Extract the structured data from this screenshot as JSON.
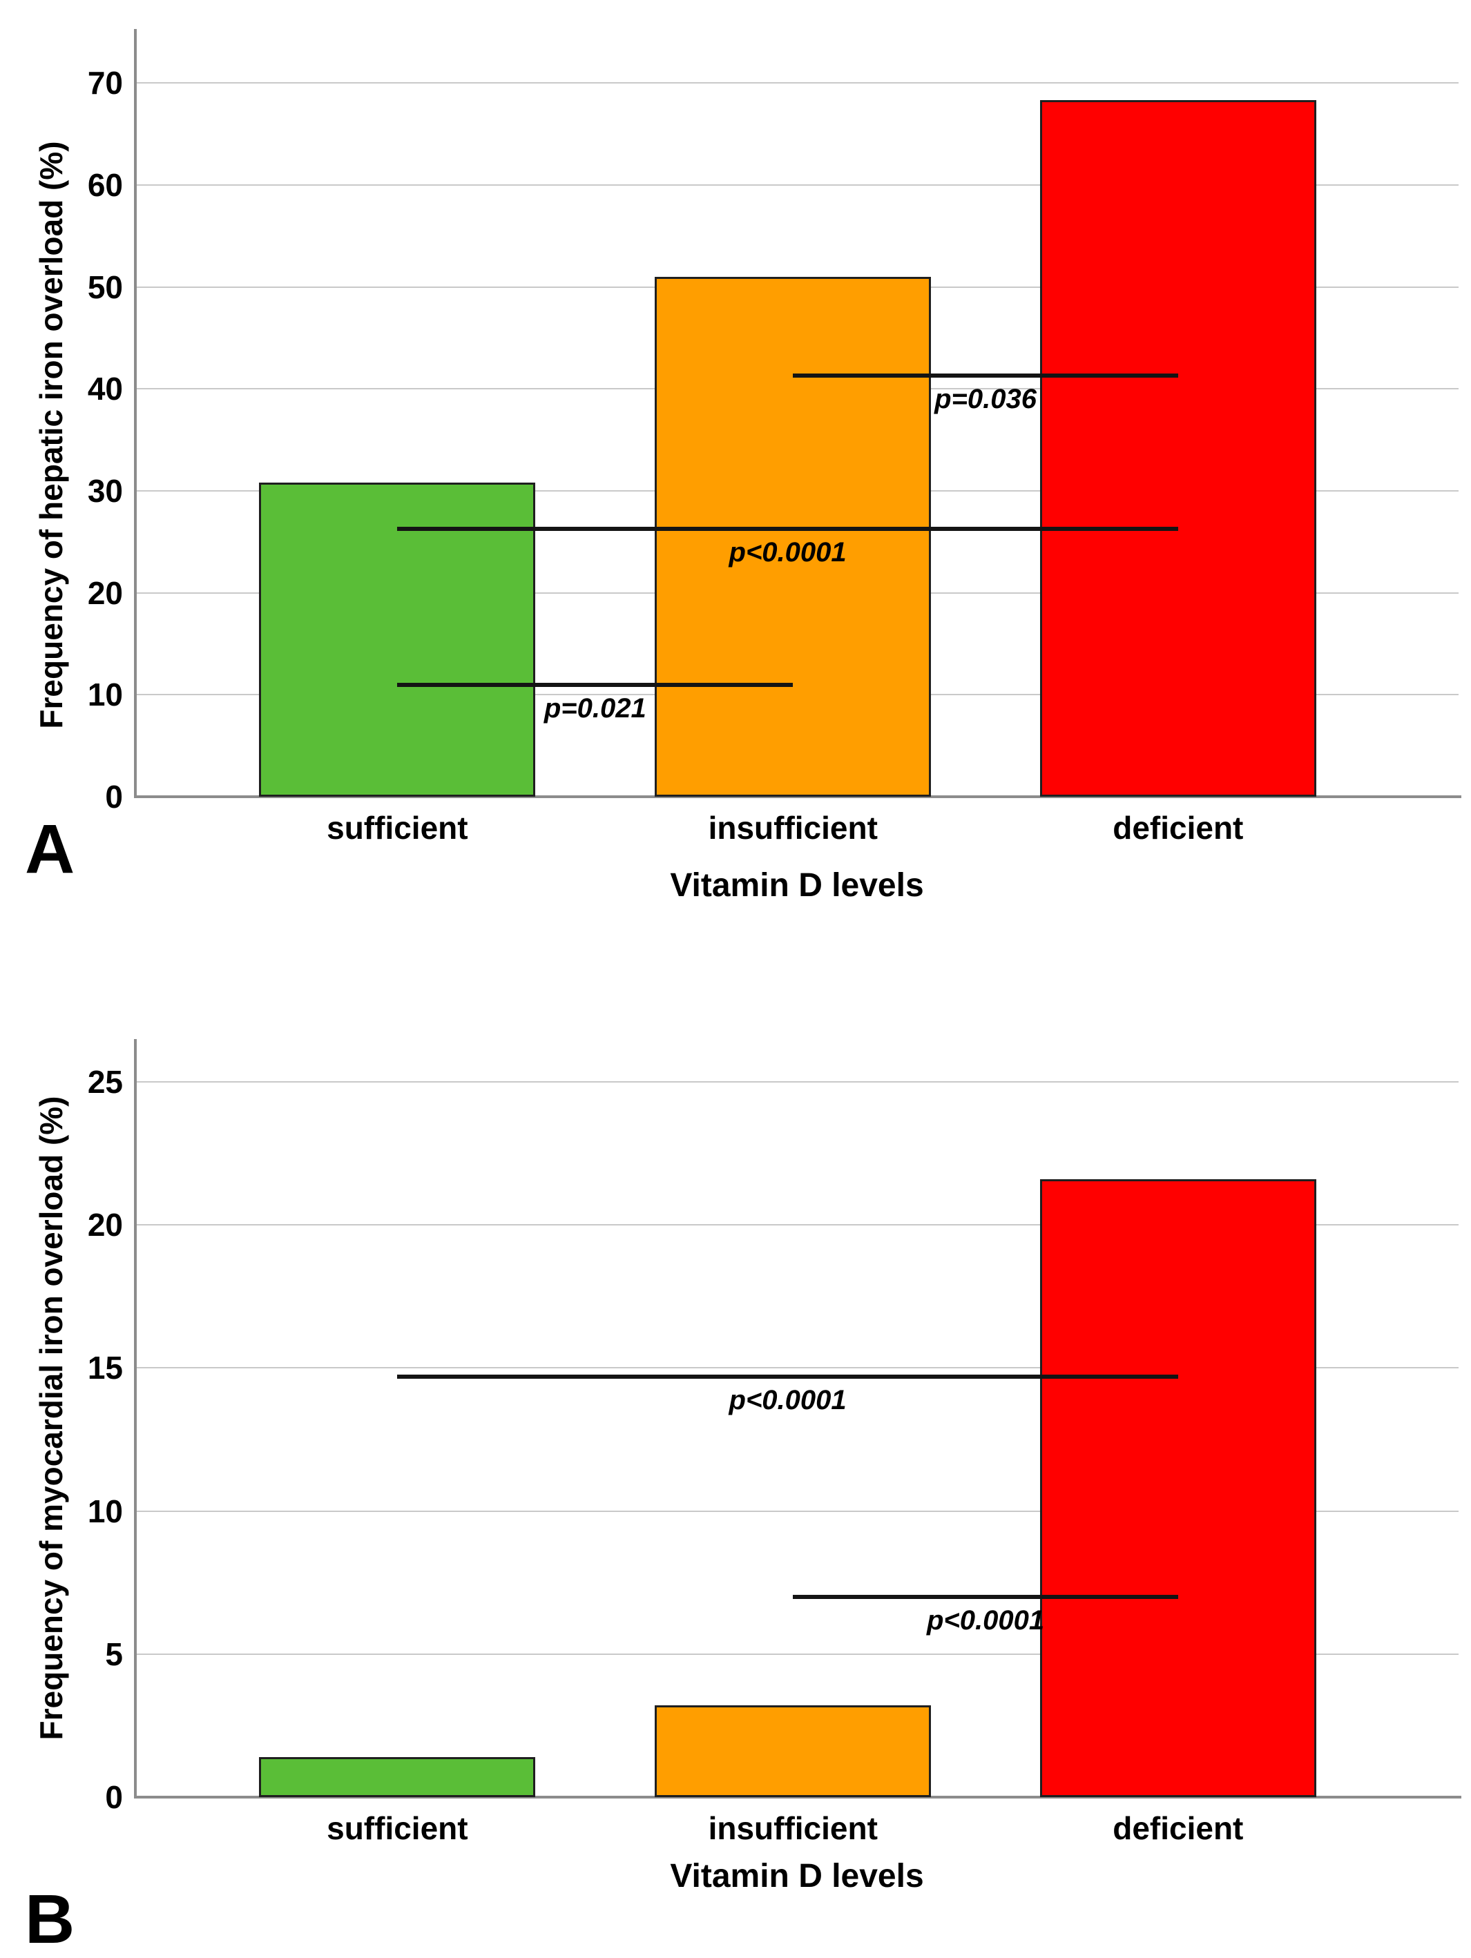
{
  "figure": {
    "background": "#ffffff",
    "grid_color": "#C9C9C9",
    "axis_color": "#8C8C8C",
    "sig_line_color": "#141414",
    "bar_border_color": "#1F1F1F"
  },
  "chart_data": [
    {
      "type": "bar",
      "panel_label": "A",
      "title": "",
      "xlabel": "Vitamin D levels",
      "ylabel": "Frequency of hepatic iron overload (%)",
      "categories": [
        "sufficient",
        "insufficient",
        "deficient"
      ],
      "values": [
        30.8,
        51.0,
        68.3
      ],
      "bar_colors": [
        "#5ABE37",
        "#FF9E00",
        "#FF0000"
      ],
      "ylim": [
        0,
        75.3
      ],
      "yticks": [
        0,
        10,
        20,
        30,
        40,
        50,
        60,
        70
      ],
      "grid": true,
      "legend": "none",
      "significance": [
        {
          "from": "sufficient",
          "to": "insufficient",
          "y": 11.0,
          "label": "p=0.021"
        },
        {
          "from": "sufficient",
          "to": "deficient",
          "y": 26.3,
          "label": "p<0.0001"
        },
        {
          "from": "insufficient",
          "to": "deficient",
          "y": 41.3,
          "label": "p=0.036"
        }
      ]
    },
    {
      "type": "bar",
      "panel_label": "B",
      "title": "",
      "xlabel": "Vitamin D levels",
      "ylabel": "Frequency of myocardial iron overload (%)",
      "categories": [
        "sufficient",
        "insufficient",
        "deficient"
      ],
      "values": [
        1.4,
        3.2,
        21.6
      ],
      "bar_colors": [
        "#5ABE37",
        "#FF9E00",
        "#FF0000"
      ],
      "ylim": [
        0,
        26.5
      ],
      "yticks": [
        0,
        5,
        10,
        15,
        20,
        25
      ],
      "grid": true,
      "legend": "none",
      "significance": [
        {
          "from": "sufficient",
          "to": "deficient",
          "y": 14.7,
          "label": "p<0.0001"
        },
        {
          "from": "insufficient",
          "to": "deficient",
          "y": 7.0,
          "label": "p<0.0001"
        }
      ]
    }
  ]
}
